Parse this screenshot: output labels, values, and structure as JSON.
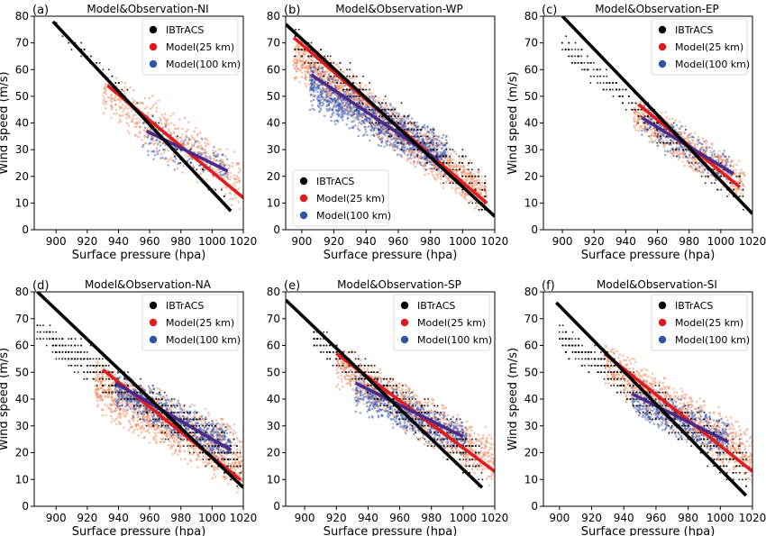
{
  "colors": {
    "obs": "#000000",
    "model25_line": "#e41a1c",
    "model25_pts": "#f08a5d",
    "model100_line": "#4b2a8a",
    "model100_pts": "#3b5bb5",
    "legend25": "#e31a1c",
    "legend100": "#2f54a8"
  },
  "legend": {
    "obs": "IBTrACS",
    "m25": "Model(25 km)",
    "m100": "Model(100 km)"
  },
  "chart_data": [
    {
      "type": "scatter",
      "panel": "(a)",
      "title": "Model&Observation-NI",
      "xlabel": "Surface pressure (hpa)",
      "ylabel": "Wind speed (m/s)",
      "xlim": [
        886,
        1020
      ],
      "ylim": [
        0,
        80
      ],
      "xticks": [
        900,
        920,
        940,
        960,
        980,
        1000,
        1020
      ],
      "yticks": [
        0,
        10,
        20,
        30,
        40,
        50,
        60,
        70,
        80
      ],
      "legend_position": "top-right",
      "series": [
        {
          "name": "IBTrACS",
          "fit": [
            [
              898,
              78
            ],
            [
              1012,
              7
            ]
          ],
          "cloud": {
            "x": [
              900,
              1010
            ],
            "ylo": [
              74,
              3
            ],
            "yhi": [
              80,
              20
            ],
            "n": 70
          }
        },
        {
          "name": "Model(25 km)",
          "fit": [
            [
              933,
              54
            ],
            [
              1020,
              12
            ]
          ],
          "cloud": {
            "x": [
              930,
              1018
            ],
            "ylo": [
              40,
              6
            ],
            "yhi": [
              62,
              30
            ],
            "n": 520
          }
        },
        {
          "name": "Model(100 km)",
          "fit": [
            [
              958,
              37
            ],
            [
              1010,
              22
            ]
          ],
          "cloud": {
            "x": [
              955,
              1010
            ],
            "ylo": [
              26,
              16
            ],
            "yhi": [
              44,
              30
            ],
            "n": 160
          }
        }
      ]
    },
    {
      "type": "scatter",
      "panel": "(b)",
      "title": "Model&Observation-WP",
      "xlabel": "Surface pressure (hpa)",
      "ylabel": "",
      "xlim": [
        890,
        1020
      ],
      "ylim": [
        0,
        80
      ],
      "xticks": [
        900,
        920,
        940,
        960,
        980,
        1000,
        1020
      ],
      "yticks": [
        0,
        10,
        20,
        30,
        40,
        50,
        60,
        70,
        80
      ],
      "legend_position": "lower-left",
      "series": [
        {
          "name": "IBTrACS",
          "fit": [
            [
              890,
              77
            ],
            [
              1020,
              5
            ]
          ],
          "cloud": {
            "x": [
              895,
              1015
            ],
            "ylo": [
              64,
              3
            ],
            "yhi": [
              77,
              24
            ],
            "n": 420
          }
        },
        {
          "name": "Model(25 km)",
          "fit": [
            [
              895,
              72
            ],
            [
              1015,
              10
            ]
          ],
          "cloud": {
            "x": [
              895,
              1015
            ],
            "ylo": [
              55,
              4
            ],
            "yhi": [
              75,
              22
            ],
            "n": 1500
          }
        },
        {
          "name": "Model(100 km)",
          "fit": [
            [
              906,
              58
            ],
            [
              985,
              26
            ]
          ],
          "cloud": {
            "x": [
              905,
              990
            ],
            "ylo": [
              44,
              18
            ],
            "yhi": [
              64,
              36
            ],
            "n": 1100
          }
        }
      ]
    },
    {
      "type": "scatter",
      "panel": "(c)",
      "title": "Model&Observation-EP",
      "xlabel": "Surface pressure (hpa)",
      "ylabel": "Wind speed (m/s)",
      "xlim": [
        888,
        1020
      ],
      "ylim": [
        0,
        80
      ],
      "xticks": [
        900,
        920,
        940,
        960,
        980,
        1000,
        1020
      ],
      "yticks": [
        0,
        10,
        20,
        30,
        40,
        50,
        60,
        70,
        80
      ],
      "legend_position": "top-right",
      "series": [
        {
          "name": "IBTrACS",
          "fit": [
            [
              900,
              80
            ],
            [
              1020,
              6
            ]
          ],
          "cloud": {
            "x": [
              900,
              1015
            ],
            "ylo": [
              64,
              4
            ],
            "yhi": [
              74,
              20
            ],
            "n": 300
          }
        },
        {
          "name": "Model(25 km)",
          "fit": [
            [
              948,
              47
            ],
            [
              1012,
              16
            ]
          ],
          "cloud": {
            "x": [
              945,
              1015
            ],
            "ylo": [
              36,
              8
            ],
            "yhi": [
              52,
              26
            ],
            "n": 620
          }
        },
        {
          "name": "Model(100 km)",
          "fit": [
            [
              950,
              42
            ],
            [
              1008,
              21
            ]
          ],
          "cloud": {
            "x": [
              950,
              1008
            ],
            "ylo": [
              32,
              14
            ],
            "yhi": [
              48,
              28
            ],
            "n": 260
          }
        }
      ]
    },
    {
      "type": "scatter",
      "panel": "(d)",
      "title": "Model&Observation-NA",
      "xlabel": "Surface pressure (hpa)",
      "ylabel": "Wind speed (m/s)",
      "xlim": [
        886,
        1020
      ],
      "ylim": [
        0,
        80
      ],
      "xticks": [
        900,
        920,
        940,
        960,
        980,
        1000,
        1020
      ],
      "yticks": [
        0,
        10,
        20,
        30,
        40,
        50,
        60,
        70,
        80
      ],
      "legend_position": "top-right",
      "series": [
        {
          "name": "IBTrACS",
          "fit": [
            [
              888,
              80
            ],
            [
              1020,
              7
            ]
          ],
          "cloud": {
            "x": [
              888,
              1018
            ],
            "ylo": [
              60,
              4
            ],
            "yhi": [
              72,
              26
            ],
            "n": 650
          }
        },
        {
          "name": "Model(25 km)",
          "fit": [
            [
              930,
              51
            ],
            [
              1018,
              10
            ]
          ],
          "cloud": {
            "x": [
              925,
              1020
            ],
            "ylo": [
              34,
              3
            ],
            "yhi": [
              56,
              30
            ],
            "n": 1200
          }
        },
        {
          "name": "Model(100 km)",
          "fit": [
            [
              938,
              46
            ],
            [
              1012,
              21
            ]
          ],
          "cloud": {
            "x": [
              938,
              1012
            ],
            "ylo": [
              36,
              14
            ],
            "yhi": [
              52,
              30
            ],
            "n": 700
          }
        }
      ]
    },
    {
      "type": "scatter",
      "panel": "(e)",
      "title": "Model&Observation-SP",
      "xlabel": "Surface pressure (hpa)",
      "ylabel": "",
      "xlim": [
        888,
        1020
      ],
      "ylim": [
        0,
        80
      ],
      "xticks": [
        900,
        920,
        940,
        960,
        980,
        1000,
        1020
      ],
      "yticks": [
        0,
        10,
        20,
        30,
        40,
        50,
        60,
        70,
        80
      ],
      "legend_position": "top-right",
      "series": [
        {
          "name": "IBTrACS",
          "fit": [
            [
              888,
              77
            ],
            [
              1012,
              7
            ]
          ],
          "cloud": {
            "x": [
              905,
              1012
            ],
            "ylo": [
              58,
              4
            ],
            "yhi": [
              68,
              28
            ],
            "n": 520
          }
        },
        {
          "name": "Model(25 km)",
          "fit": [
            [
              920,
              57
            ],
            [
              1020,
              13
            ]
          ],
          "cloud": {
            "x": [
              920,
              1020
            ],
            "ylo": [
              44,
              6
            ],
            "yhi": [
              62,
              28
            ],
            "n": 1000
          }
        },
        {
          "name": "Model(100 km)",
          "fit": [
            [
              932,
              46
            ],
            [
              1000,
              26
            ]
          ],
          "cloud": {
            "x": [
              932,
              1002
            ],
            "ylo": [
              34,
              18
            ],
            "yhi": [
              52,
              32
            ],
            "n": 620
          }
        }
      ]
    },
    {
      "type": "scatter",
      "panel": "(f)",
      "title": "Model&Observation-SI",
      "xlabel": "Surface pressure (hpa)",
      "ylabel": "Wind speed (m/s)",
      "xlim": [
        890,
        1020
      ],
      "ylim": [
        0,
        80
      ],
      "xticks": [
        900,
        920,
        940,
        960,
        980,
        1000,
        1020
      ],
      "yticks": [
        0,
        10,
        20,
        30,
        40,
        50,
        60,
        70,
        80
      ],
      "legend_position": "top-right",
      "series": [
        {
          "name": "IBTrACS",
          "fit": [
            [
              898,
              76
            ],
            [
              1016,
              4
            ]
          ],
          "cloud": {
            "x": [
              900,
              1016
            ],
            "ylo": [
              58,
              3
            ],
            "yhi": [
              68,
              26
            ],
            "n": 560
          }
        },
        {
          "name": "Model(25 km)",
          "fit": [
            [
              928,
              57
            ],
            [
              1020,
              13
            ]
          ],
          "cloud": {
            "x": [
              928,
              1020
            ],
            "ylo": [
              44,
              6
            ],
            "yhi": [
              62,
              30
            ],
            "n": 900
          }
        },
        {
          "name": "Model(100 km)",
          "fit": [
            [
              945,
              42
            ],
            [
              1005,
              24
            ]
          ],
          "cloud": {
            "x": [
              945,
              1005
            ],
            "ylo": [
              32,
              16
            ],
            "yhi": [
              50,
              32
            ],
            "n": 520
          }
        }
      ]
    }
  ]
}
